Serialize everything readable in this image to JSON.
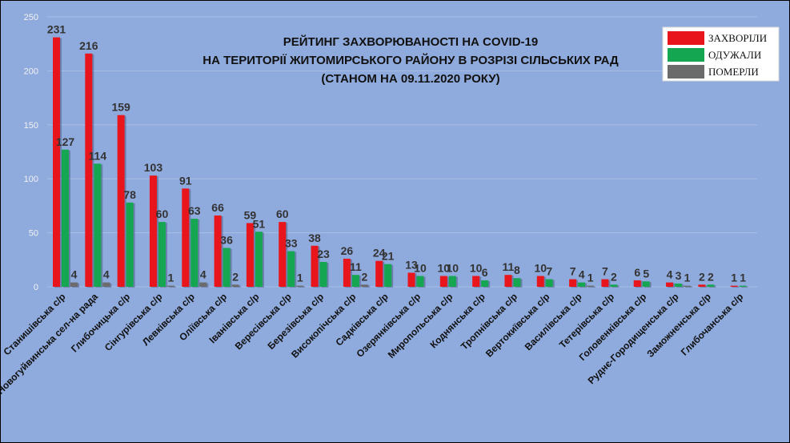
{
  "chart_data": {
    "type": "bar",
    "title": [
      "РЕЙТИНГ ЗАХВОРЮВАНОСТІ НА COVID-19",
      "НА ТЕРИТОРІЇ ЖИТОМИРСЬКОГО РАЙОНУ В РОЗРІЗІ СІЛЬСЬКИХ РАД",
      "(СТАНОМ НА 09.11.2020 РОКУ)"
    ],
    "ylim": [
      0,
      250
    ],
    "yticks": [
      0,
      50,
      100,
      150,
      200,
      250
    ],
    "grid": true,
    "legend_position": "top-right",
    "categories": [
      "Станишівська с/р",
      "Новогуйвинська сел-на рада",
      "Глибочицька с/р",
      "Сінгурівська с/р",
      "Левківська с/р",
      "Оліївська с/р",
      "Іванівська с/р",
      "Вересівська с/р",
      "Березівська с/р",
      "Високопічська с/р",
      "Садківська с/р",
      "Озерянківська с/р",
      "Миропольська с/р",
      "Коднянська с/р",
      "Тропнівська с/р",
      "Вертокиївська с/р",
      "Василівська с/р",
      "Тетерівська с/р",
      "Головенківська с/р",
      "Руднє-Городищенська с/р",
      "Заможненська с/р",
      "Глибочанська с/р"
    ],
    "series": [
      {
        "name": "ЗАХВОРІЛИ",
        "color": "#E8161C",
        "values": [
          231,
          216,
          159,
          103,
          91,
          66,
          59,
          60,
          38,
          26,
          24,
          13,
          10,
          10,
          11,
          10,
          7,
          7,
          6,
          4,
          2,
          1
        ],
        "labels": [
          "231",
          "216",
          "159",
          "103",
          "91",
          "66",
          "59",
          "60",
          "38",
          "26",
          "24",
          "13",
          "10",
          "10",
          "11",
          "10",
          "7",
          "7",
          "6",
          "4",
          "2",
          "1"
        ]
      },
      {
        "name": "ОДУЖАЛИ",
        "color": "#14A651",
        "values": [
          127,
          114,
          78,
          60,
          63,
          36,
          51,
          33,
          23,
          11,
          21,
          10,
          10,
          6,
          8,
          7,
          4,
          2,
          5,
          3,
          2,
          1
        ],
        "labels": [
          "127",
          "114",
          "78",
          "60",
          "63",
          "36",
          "51",
          "33",
          "23",
          "11",
          "21",
          "10",
          "10",
          "6",
          "8",
          "7",
          "4",
          "2",
          "5",
          "3",
          "2",
          "1"
        ]
      },
      {
        "name": "ПОМЕРЛИ",
        "color": "#6B6B6B",
        "values": [
          4,
          4,
          0,
          1,
          4,
          2,
          0,
          1,
          0,
          2,
          0,
          0,
          0,
          0,
          0,
          0,
          1,
          0,
          0,
          1,
          0,
          0
        ],
        "labels": [
          "4",
          "4",
          "",
          "1",
          "4",
          "2",
          "",
          "1",
          "",
          "2",
          "",
          "",
          "",
          "",
          "",
          "",
          "1",
          "",
          "",
          "1",
          "",
          ""
        ]
      }
    ]
  }
}
